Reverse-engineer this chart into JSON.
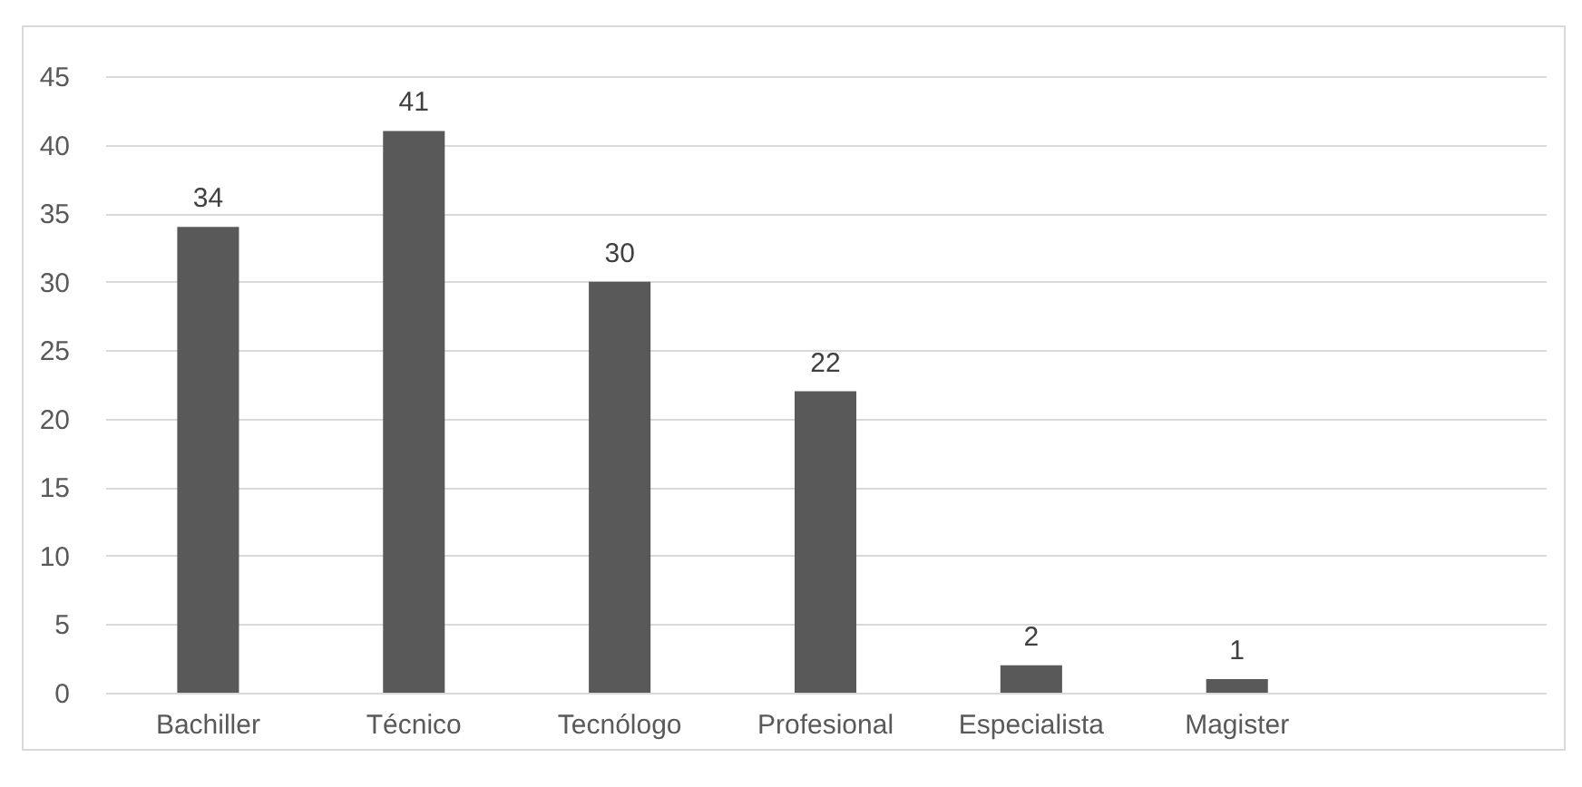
{
  "chart_data": {
    "type": "bar",
    "categories": [
      "Bachiller",
      "Técnico",
      "Tecnólogo",
      "Profesional",
      "Especialista",
      "Magister",
      null
    ],
    "values": [
      34,
      41,
      30,
      22,
      2,
      1,
      null
    ],
    "color": "#595959",
    "ylim": [
      0,
      45
    ],
    "yticks": [
      0,
      5,
      10,
      15,
      20,
      25,
      30,
      35,
      40,
      45
    ],
    "grid": "y",
    "data_labels": true
  }
}
